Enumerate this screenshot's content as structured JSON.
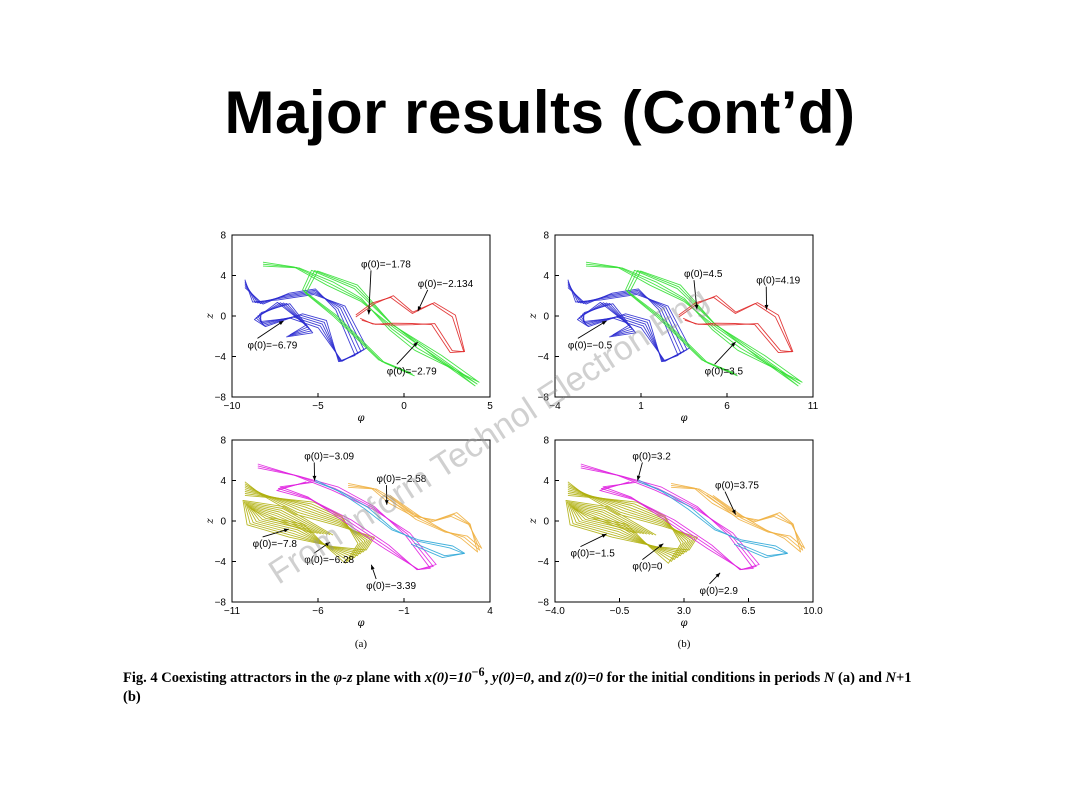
{
  "slide": {
    "title": "Major results (Cont’d)"
  },
  "watermark": "From Inform Technol Electron Eng",
  "caption": {
    "label": "Fig. 4",
    "text_a": "Coexisting attractors in the ",
    "plane": "φ-z",
    "text_b": " plane with ",
    "x0": "x(0)=10",
    "x0_exp": "−6",
    "text_c": ", ",
    "y0": "y(0)=0",
    "text_d": ", and ",
    "z0": "z(0)=0",
    "text_e": " for the initial conditions in periods ",
    "N": "N",
    "text_f": " (a) and ",
    "N1": "N",
    "text_g": "+1 (b)"
  },
  "colors": {
    "blue": "#2b2bd0",
    "green": "#33e033",
    "red": "#e02828",
    "olive": "#b0b010",
    "magenta": "#e020e0",
    "cyan": "#30a8d8",
    "orange": "#f0b040"
  },
  "chart_data": [
    {
      "id": "a-top",
      "type": "line",
      "xlabel": "φ",
      "ylabel": "z",
      "xlim": [
        -10,
        5
      ],
      "ylim": [
        -8,
        8
      ],
      "xticks": [
        "−10",
        "−5",
        "0",
        "5"
      ],
      "yticks": [
        "8",
        "4",
        "0",
        "−4",
        "−8"
      ],
      "series": [
        {
          "label": "φ(0)=−6.79",
          "color": "blue"
        },
        {
          "label": "φ(0)=−2.79",
          "color": "green"
        },
        {
          "label": "φ(0)=−1.78",
          "color": "red"
        },
        {
          "label": "φ(0)=−2.134",
          "color": "red"
        }
      ]
    },
    {
      "id": "b-top",
      "type": "line",
      "xlabel": "φ",
      "ylabel": "z",
      "xlim": [
        -4,
        11
      ],
      "ylim": [
        -8,
        8
      ],
      "xticks": [
        "−4",
        "1",
        "6",
        "11"
      ],
      "yticks": [
        "8",
        "4",
        "0",
        "−4",
        "−8"
      ],
      "series": [
        {
          "label": "φ(0)=−0.5",
          "color": "blue"
        },
        {
          "label": "φ(0)=3.5",
          "color": "green"
        },
        {
          "label": "φ(0)=4.5",
          "color": "red"
        },
        {
          "label": "φ(0)=4.19",
          "color": "red"
        }
      ]
    },
    {
      "id": "a-bottom",
      "type": "line",
      "panel": "(a)",
      "xlabel": "φ",
      "ylabel": "z",
      "xlim": [
        -11,
        4
      ],
      "ylim": [
        -8,
        8
      ],
      "xticks": [
        "−11",
        "−6",
        "−1",
        "4"
      ],
      "yticks": [
        "8",
        "4",
        "0",
        "−4",
        "−8"
      ],
      "series": [
        {
          "label": "φ(0)=−7.8",
          "color": "olive"
        },
        {
          "label": "φ(0)=−6.28",
          "color": "olive"
        },
        {
          "label": "φ(0)=−3.39",
          "color": "magenta"
        },
        {
          "label": "φ(0)=−3.09",
          "color": "cyan"
        },
        {
          "label": "φ(0)=−2.58",
          "color": "orange"
        }
      ]
    },
    {
      "id": "b-bottom",
      "type": "line",
      "panel": "(b)",
      "xlabel": "φ",
      "ylabel": "z",
      "xlim": [
        -4.0,
        10.0
      ],
      "ylim": [
        -8,
        8
      ],
      "xticks": [
        "−4.0",
        "−0.5",
        "3.0",
        "6.5",
        "10.0"
      ],
      "yticks": [
        "8",
        "4",
        "0",
        "−4",
        "−8"
      ],
      "series": [
        {
          "label": "φ(0)=−1.5",
          "color": "olive"
        },
        {
          "label": "φ(0)=0",
          "color": "olive"
        },
        {
          "label": "φ(0)=2.9",
          "color": "magenta"
        },
        {
          "label": "φ(0)=3.2",
          "color": "cyan"
        },
        {
          "label": "φ(0)=3.75",
          "color": "orange"
        }
      ]
    }
  ]
}
